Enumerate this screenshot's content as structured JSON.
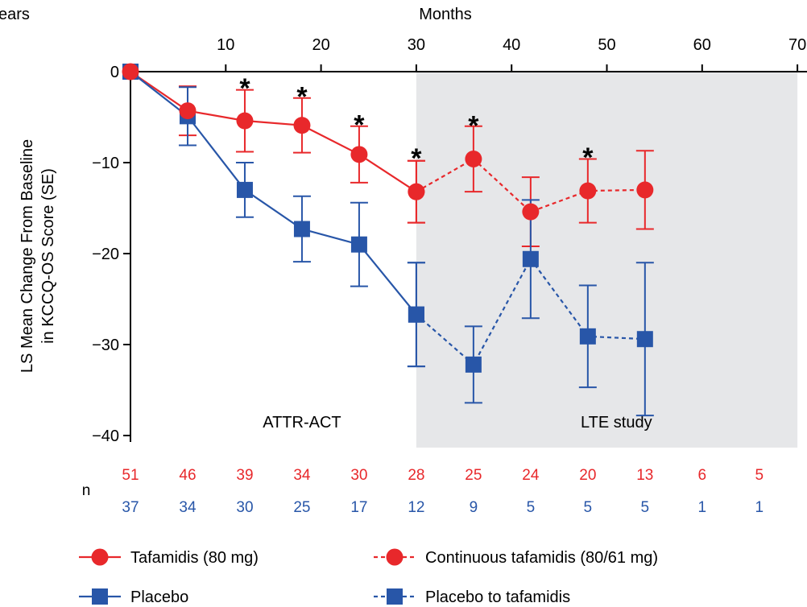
{
  "colors": {
    "tafamidis": "#e8282b",
    "placebo": "#2856a8",
    "lte_shading": "#e6e7e9",
    "axis": "#000000"
  },
  "chart_data": {
    "type": "line",
    "title": "",
    "corner_label": "ears",
    "xlabel": "Months",
    "ylabel_line1": "LS Mean Change From Baseline",
    "ylabel_line2": "in KCCQ-OS Score (SE)",
    "xlim": [
      0,
      70
    ],
    "ylim": [
      -40,
      0
    ],
    "xticks": [
      10,
      20,
      30,
      40,
      50,
      60,
      70
    ],
    "yticks": [
      0,
      -10,
      -20,
      -30,
      -40
    ],
    "ytick_labels": [
      "0",
      "−10",
      "−20",
      "−30",
      "−40"
    ],
    "shaded_region": {
      "x_from": 30,
      "x_to": 70
    },
    "region_labels": [
      {
        "text": "ATTR-ACT",
        "x": 18,
        "y": -38.5
      },
      {
        "text": "LTE study",
        "x": 51,
        "y": -38.5
      }
    ],
    "series": [
      {
        "name": "Tafamidis (80 mg)",
        "color_key": "tafamidis",
        "marker": "circle",
        "line": "solid",
        "x": [
          0,
          6,
          12,
          18,
          24,
          30
        ],
        "y": [
          0,
          -4.3,
          -5.4,
          -5.9,
          -9.1,
          -13.2
        ],
        "err": [
          0,
          2.7,
          3.4,
          3.0,
          3.1,
          3.4
        ]
      },
      {
        "name": "Continuous tafamidis (80/61 mg)",
        "color_key": "tafamidis",
        "marker": "circle",
        "line": "dashed",
        "x": [
          30,
          36,
          42,
          48,
          54
        ],
        "y": [
          -13.2,
          -9.6,
          -15.4,
          -13.1,
          -13.0
        ],
        "err": [
          3.4,
          3.6,
          3.8,
          3.5,
          4.3
        ]
      },
      {
        "name": "Placebo",
        "color_key": "placebo",
        "marker": "square",
        "line": "solid",
        "x": [
          0,
          6,
          12,
          18,
          24,
          30
        ],
        "y": [
          0,
          -4.9,
          -13.0,
          -17.3,
          -19.0,
          -26.7
        ],
        "err": [
          0,
          3.2,
          3.0,
          3.6,
          4.6,
          5.7
        ]
      },
      {
        "name": "Placebo to tafamidis",
        "color_key": "placebo",
        "marker": "square",
        "line": "dashed",
        "x": [
          30,
          36,
          42,
          48,
          54
        ],
        "y": [
          -26.7,
          -32.2,
          -20.6,
          -29.1,
          -29.4
        ],
        "err": [
          5.7,
          4.2,
          6.5,
          5.6,
          8.4
        ]
      }
    ],
    "significance_markers": [
      {
        "x": 12,
        "y": -1.6,
        "text": "*"
      },
      {
        "x": 18,
        "y": -2.5,
        "text": "*"
      },
      {
        "x": 24,
        "y": -5.6,
        "text": "*"
      },
      {
        "x": 30,
        "y": -9.3,
        "text": "*"
      },
      {
        "x": 36,
        "y": -5.7,
        "text": "*"
      },
      {
        "x": 48,
        "y": -9.2,
        "text": "*"
      }
    ],
    "n_table": {
      "label": "n",
      "x": [
        0,
        6,
        12,
        18,
        24,
        30,
        36,
        42,
        48,
        54,
        60,
        66
      ],
      "tafamidis": [
        "51",
        "46",
        "39",
        "34",
        "30",
        "28",
        "25",
        "24",
        "20",
        "13",
        "6",
        "5"
      ],
      "placebo": [
        "37",
        "34",
        "30",
        "25",
        "17",
        "12",
        "9",
        "5",
        "5",
        "5",
        "1",
        "1"
      ]
    },
    "legend_placement": "bottom"
  }
}
